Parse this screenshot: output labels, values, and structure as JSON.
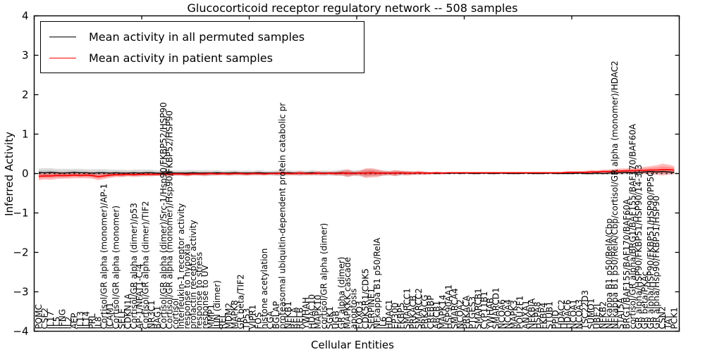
{
  "figure": {
    "title": "Glucocorticoid receptor regulatory network -- 508 samples",
    "xlabel": "Cellular Entities",
    "ylabel": "Inferred Activity"
  },
  "legend": {
    "items": [
      {
        "label": "Mean activity in all permuted samples",
        "color": "#000000"
      },
      {
        "label": "Mean activity in patient samples",
        "color": "#ff0000"
      }
    ]
  },
  "chart_data": {
    "type": "line",
    "title": "Glucocorticoid receptor regulatory network -- 508 samples",
    "xlabel": "Cellular Entities",
    "ylabel": "Inferred Activity",
    "ylim": [
      -4,
      4
    ],
    "yticks": [
      -4,
      -3,
      -2,
      -1,
      0,
      1,
      2,
      3,
      4
    ],
    "ytick_labels": [
      "−4",
      "−3",
      "−2",
      "−1",
      "0",
      "1",
      "2",
      "3",
      "4"
    ],
    "grid": false,
    "legend_position": "upper left",
    "zero_line": {
      "value": 0,
      "style": "dotted",
      "color": "#000000"
    },
    "categories": [
      "POMC",
      "CSF2",
      "IL17",
      "IL5",
      "IFNG",
      "IL2",
      "AEP",
      "IL13",
      "IL14",
      "PRL",
      "IL8",
      "Cortisol/GR alpha (monomer)/AP-1",
      "ICAM1",
      "Cortisol/GR alpha (monomer)",
      "SELE",
      "CDKN1A",
      "Cortisol/GR alpha (dimer)/p53",
      "AP-1/NFAT1-C-4",
      "Cortisol/GR alpha (dimer)/TIF2",
      "NR3C1",
      "BAG1",
      "Cortisol/GR alpha (dimer)/Src-1/Hsp90/FKBP52/HSP90",
      "Cortisol/GR alpha (monomer)/Hsp90/FKBP52/HSP90",
      "cortisol",
      "Interleukin-1 receptor activity",
      "response to hypoxia",
      "prolactin receptor activity",
      "response to stress",
      "response to UV",
      "MMP1",
      "JUN (dimer)",
      "REL",
      "MDM2",
      "MAPK8",
      "GR beta/TIF2",
      "TP53",
      "VIPR1",
      "FOS",
      "histone acetylation",
      "CGA",
      "BGLAP",
      "proteasomal ubiquitin-dependent protein catabolic pr",
      "NFKB1",
      "RELA",
      "RELB",
      "YWHAH",
      "HDAC10",
      "MAPK10",
      "cortisol/GR alpha (dimer)",
      "SGK1",
      "UGB",
      "GR alpha (dimer)",
      "MAPKKK cascade",
      "apoptosis",
      "FOXO3",
      "CDK5R1/CDK5",
      "SERPINE1",
      "NFkappa B1 p50/RelA",
      "IL6",
      "HDAC1",
      "EP300",
      "FKBP5",
      "SMARCC1",
      "PRKACB",
      "SMARCC2",
      "PRKACG",
      "CREBBP",
      "ABCB1",
      "MAPK14",
      "HSP90AA1",
      "SMARCA4",
      "NCOA2",
      "PRKACA",
      "PTGES3",
      "SMARCB1",
      "CYP11B1",
      "YWHAB",
      "SMARCD1",
      "NCOA6",
      "NCOA4",
      "MAPK3",
      "POU2F1",
      "ANXA1",
      "NFKBIA",
      "HSPA8",
      "FKBP4",
      "STUB1",
      "PPID",
      "HDAC2",
      "HDAC6",
      "NCOA1",
      "NCOA3",
      "TSC22D3",
      "SUMO1",
      "UBE2I",
      "NFKB2",
      "NFkappa B1 p50/RelA/Cbp",
      "NFkappa B1 p50/RelA/Cbp/cortisol/GR alpha (monomer)/HDAC2",
      "STAT5A",
      "BRG1/BAF155/BAF170/BAF60A",
      "cortisol/GR alpha/BRG1/BAF155/BAF170/BAF60A",
      "GR alpha/HSP90/FKBP51/HSP90/14-3-3",
      "GR beta/PKAc",
      "GR alpha/HSP90/FKBP51/HSP90/PP5C",
      "GR alpha/Hsp90/FKBP51/HSP90",
      "CSN2",
      "TAT",
      "PCK1"
    ],
    "series": [
      {
        "name": "Mean activity in all permuted samples",
        "color": "#000000",
        "band_color": "#999999",
        "mean": [
          0.03,
          0.02,
          0.03,
          0.02,
          0.01,
          0.02,
          0.03,
          0.02,
          0.02,
          0.01,
          0.02,
          0.02,
          0.01,
          0.02,
          0.01,
          0.01,
          0.02,
          0.01,
          0.02,
          0.02,
          0.01,
          0.01,
          0.02,
          0.01,
          0.01,
          0.01,
          0.02,
          0.01,
          0.01,
          0.01,
          0.02,
          0.01,
          0.01,
          0.02,
          0.01,
          0.01,
          0.01,
          0.02,
          0.01,
          0.01,
          0.01,
          0.01,
          0.02,
          0.01,
          0.01,
          0.01,
          0.02,
          0.01,
          0.01,
          0.01,
          0.01,
          0.02,
          0.01,
          0.01,
          0.01,
          0.01,
          0.02,
          0.01,
          0.01,
          0.01,
          0.01,
          0.01,
          0.01,
          0.01,
          0.01,
          0.01,
          0.01,
          0.0,
          0.01,
          0.0,
          0.01,
          0.0,
          0.01,
          0.0,
          0.0,
          0.01,
          0.0,
          0.0,
          0.01,
          0.0,
          0.0,
          0.0,
          0.01,
          0.0,
          0.0,
          0.0,
          0.01,
          0.0,
          0.0,
          0.0,
          0.0,
          0.01,
          0.0,
          0.0,
          0.01,
          0.0,
          0.01,
          0.02,
          0.02,
          0.03,
          0.02,
          0.03,
          0.04,
          0.05,
          0.04,
          0.05,
          0.04,
          0.03
        ],
        "band_halfwidth": [
          0.1,
          0.12,
          0.11,
          0.1,
          0.11,
          0.1,
          0.09,
          0.1,
          0.09,
          0.1,
          0.09,
          0.09,
          0.09,
          0.08,
          0.09,
          0.08,
          0.08,
          0.09,
          0.08,
          0.08,
          0.07,
          0.08,
          0.08,
          0.07,
          0.07,
          0.08,
          0.07,
          0.07,
          0.08,
          0.07,
          0.07,
          0.06,
          0.07,
          0.07,
          0.06,
          0.07,
          0.06,
          0.07,
          0.06,
          0.06,
          0.07,
          0.08,
          0.07,
          0.06,
          0.07,
          0.06,
          0.07,
          0.06,
          0.07,
          0.06,
          0.07,
          0.08,
          0.09,
          0.07,
          0.08,
          0.1,
          0.09,
          0.08,
          0.07,
          0.06,
          0.07,
          0.06,
          0.05,
          0.05,
          0.04,
          0.04,
          0.03,
          0.03,
          0.03,
          0.02,
          0.02,
          0.02,
          0.02,
          0.02,
          0.02,
          0.02,
          0.02,
          0.02,
          0.02,
          0.02,
          0.02,
          0.02,
          0.02,
          0.02,
          0.02,
          0.02,
          0.02,
          0.02,
          0.02,
          0.02,
          0.02,
          0.02,
          0.03,
          0.03,
          0.04,
          0.03,
          0.04,
          0.04,
          0.05,
          0.04,
          0.05,
          0.04,
          0.05,
          0.06,
          0.05,
          0.06,
          0.05,
          0.05
        ]
      },
      {
        "name": "Mean activity in patient samples",
        "color": "#ff0000",
        "band_color": "#ff3333",
        "mean": [
          -0.07,
          -0.06,
          -0.06,
          -0.05,
          -0.05,
          -0.05,
          -0.04,
          -0.05,
          -0.04,
          -0.05,
          -0.08,
          -0.06,
          -0.04,
          -0.03,
          -0.03,
          -0.02,
          -0.03,
          -0.02,
          -0.02,
          -0.02,
          -0.02,
          -0.01,
          -0.02,
          -0.01,
          -0.01,
          -0.02,
          -0.01,
          -0.01,
          -0.01,
          0.0,
          -0.01,
          0.0,
          -0.01,
          0.0,
          0.0,
          -0.01,
          0.0,
          0.0,
          -0.01,
          0.0,
          0.0,
          0.01,
          0.0,
          0.0,
          0.01,
          0.0,
          0.0,
          0.01,
          0.0,
          0.01,
          0.0,
          0.01,
          0.01,
          0.0,
          0.01,
          0.01,
          0.02,
          0.01,
          0.01,
          0.01,
          0.01,
          0.02,
          0.01,
          0.01,
          0.02,
          0.01,
          0.01,
          0.02,
          0.01,
          0.02,
          0.02,
          0.02,
          0.02,
          0.02,
          0.02,
          0.02,
          0.02,
          0.02,
          0.02,
          0.02,
          0.02,
          0.02,
          0.02,
          0.02,
          0.02,
          0.02,
          0.02,
          0.02,
          0.02,
          0.03,
          0.03,
          0.03,
          0.03,
          0.04,
          0.04,
          0.05,
          0.05,
          0.06,
          0.06,
          0.07,
          0.07,
          0.08,
          0.08,
          0.09,
          0.09,
          0.1,
          0.1,
          0.09
        ],
        "band_halfwidth": [
          0.1,
          0.09,
          0.1,
          0.09,
          0.08,
          0.08,
          0.08,
          0.07,
          0.08,
          0.08,
          0.09,
          0.08,
          0.07,
          0.06,
          0.06,
          0.05,
          0.06,
          0.05,
          0.05,
          0.05,
          0.04,
          0.05,
          0.05,
          0.04,
          0.04,
          0.05,
          0.04,
          0.04,
          0.05,
          0.04,
          0.04,
          0.04,
          0.04,
          0.04,
          0.04,
          0.04,
          0.04,
          0.04,
          0.04,
          0.03,
          0.04,
          0.05,
          0.04,
          0.04,
          0.05,
          0.04,
          0.04,
          0.05,
          0.04,
          0.04,
          0.05,
          0.06,
          0.1,
          0.05,
          0.06,
          0.12,
          0.12,
          0.1,
          0.06,
          0.05,
          0.08,
          0.05,
          0.06,
          0.04,
          0.05,
          0.04,
          0.03,
          0.03,
          0.03,
          0.02,
          0.02,
          0.02,
          0.02,
          0.02,
          0.02,
          0.02,
          0.02,
          0.02,
          0.02,
          0.02,
          0.02,
          0.02,
          0.02,
          0.02,
          0.02,
          0.02,
          0.02,
          0.02,
          0.02,
          0.03,
          0.03,
          0.03,
          0.04,
          0.05,
          0.04,
          0.05,
          0.05,
          0.06,
          0.07,
          0.06,
          0.07,
          0.07,
          0.09,
          0.1,
          0.12,
          0.15,
          0.13,
          0.1
        ]
      }
    ]
  }
}
